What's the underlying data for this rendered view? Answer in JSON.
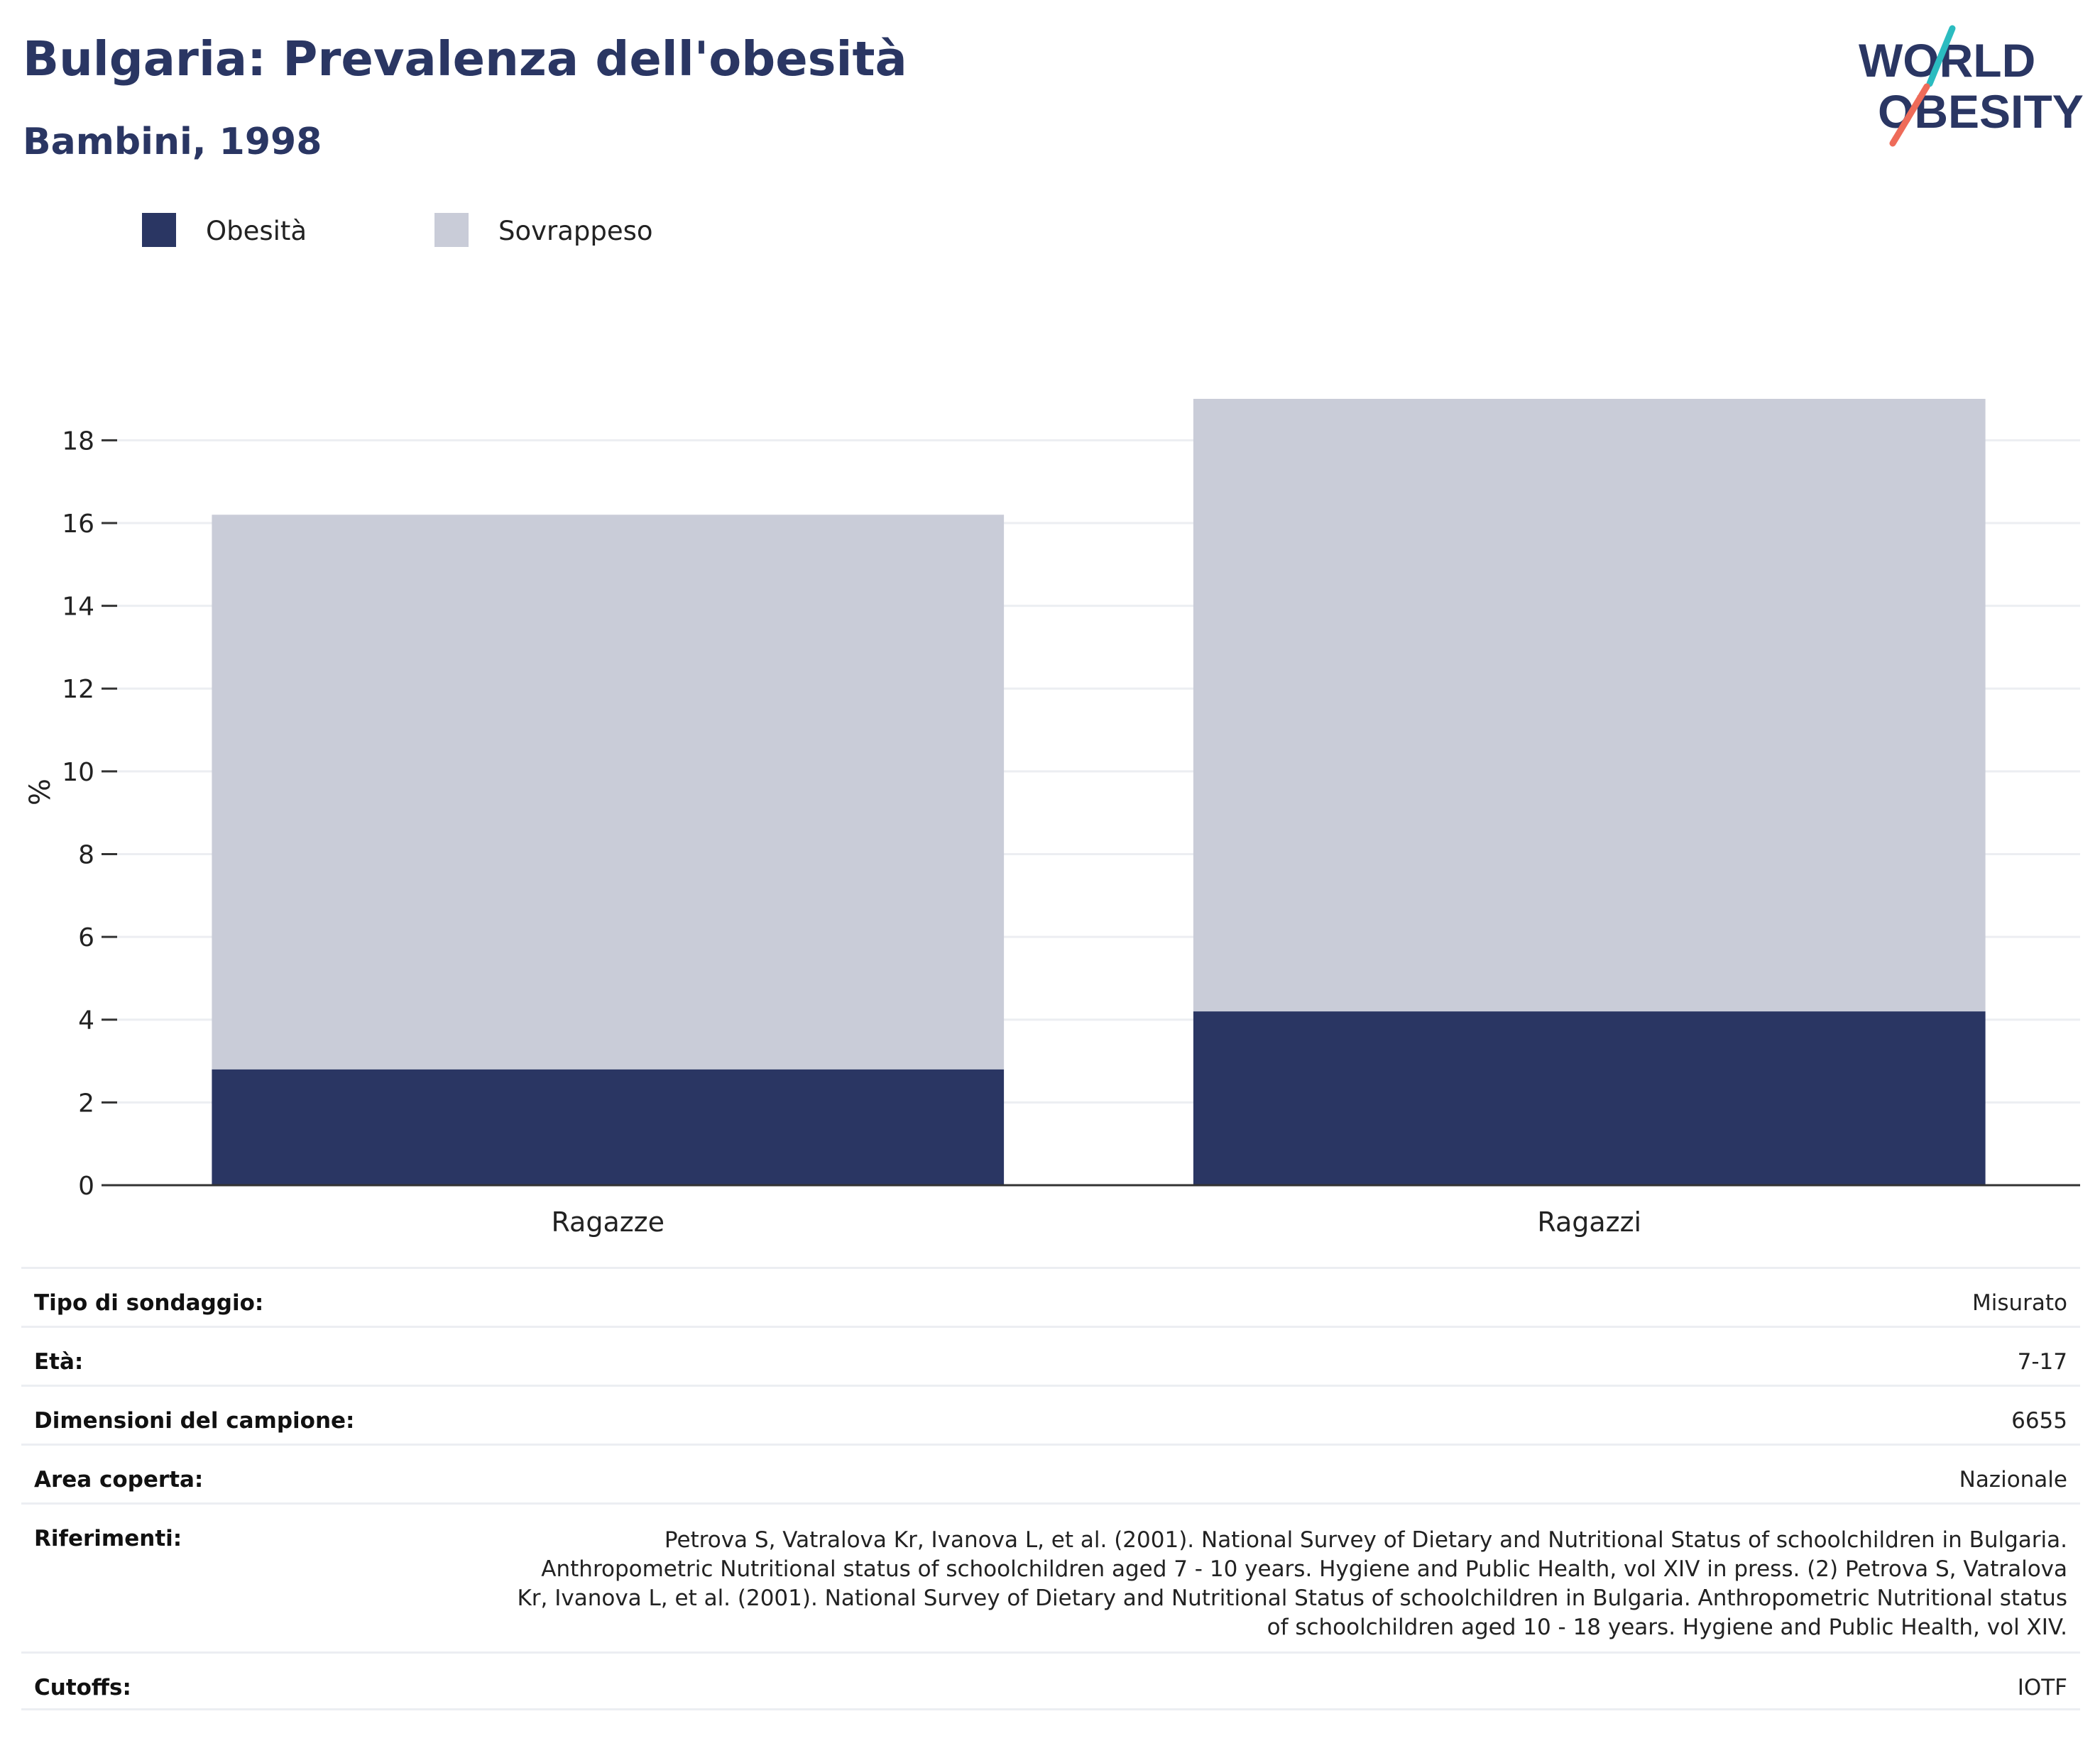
{
  "header": {
    "title": "Bulgaria: Prevalenza dell'obesità",
    "subtitle": "Bambini, 1998"
  },
  "logo": {
    "line1": "WORLD",
    "line2": "OBESITY"
  },
  "legend": [
    {
      "label": "Obesità",
      "color": "#2a3663"
    },
    {
      "label": "Sovrappeso",
      "color": "#c9ccd8"
    }
  ],
  "chart_data": {
    "type": "bar",
    "stacked": true,
    "categories": [
      "Ragazze",
      "Ragazzi"
    ],
    "series": [
      {
        "name": "Obesità",
        "values": [
          2.8,
          4.2
        ],
        "color": "#2a3663"
      },
      {
        "name": "Sovrappeso",
        "values": [
          13.4,
          14.8
        ],
        "color": "#c9ccd8"
      }
    ],
    "ylabel": "%",
    "ylim": [
      0,
      19
    ],
    "yticks": [
      0,
      2,
      4,
      6,
      8,
      10,
      12,
      14,
      16,
      18
    ],
    "grid": true,
    "legend_position": "top-left"
  },
  "info": {
    "rows": [
      {
        "label": "Tipo di sondaggio:",
        "value": "Misurato"
      },
      {
        "label": "Età:",
        "value": "7-17"
      },
      {
        "label": "Dimensioni del campione:",
        "value": "6655"
      },
      {
        "label": "Area coperta:",
        "value": "Nazionale"
      },
      {
        "label": "Riferimenti:",
        "value": "Petrova S, Vatralova Kr, Ivanova L, et al. (2001). National Survey of Dietary and Nutritional Status of schoolchildren in Bulgaria. Anthropometric Nutritional status of schoolchildren aged 7 - 10 years. Hygiene and Public Health, vol XIV in press. (2) Petrova S, Vatralova Kr, Ivanova L, et al. (2001). National Survey of Dietary and Nutritional Status of schoolchildren in Bulgaria. Anthropometric Nutritional status of schoolchildren aged 10 - 18 years. Hygiene and Public Health, vol XIV."
      },
      {
        "label": "Cutoffs:",
        "value": "IOTF"
      }
    ]
  }
}
